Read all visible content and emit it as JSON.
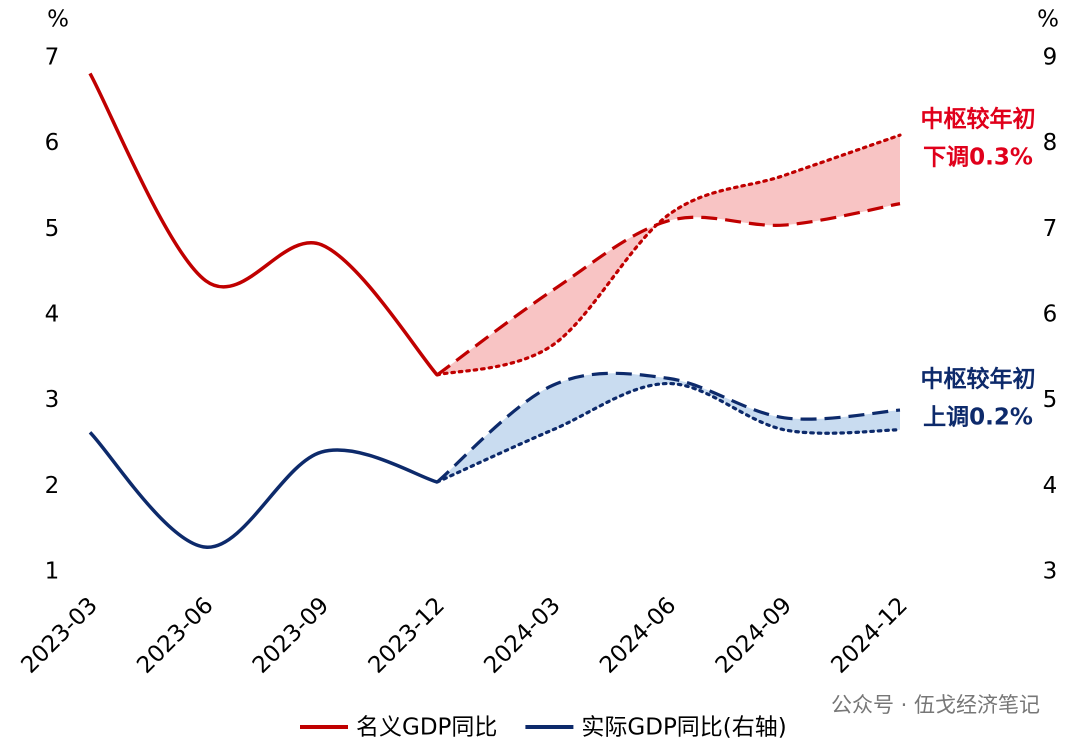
{
  "chart_data": {
    "type": "line",
    "categories": [
      "2023-03",
      "2023-06",
      "2023-09",
      "2023-12",
      "2024-03",
      "2024-06",
      "2024-09",
      "2024-12"
    ],
    "ylabel": "%",
    "y2label": "%",
    "ylim": [
      1,
      7
    ],
    "yticks": [
      1,
      2,
      3,
      4,
      5,
      6,
      7
    ],
    "y2lim": [
      3,
      9
    ],
    "y2ticks": [
      3,
      4,
      5,
      6,
      7,
      8,
      9
    ],
    "series": [
      {
        "name": "名义GDP同比",
        "color": "#c00000",
        "style": "solid",
        "values": [
          6.82,
          4.4,
          4.82,
          3.3,
          null,
          null,
          null,
          null
        ]
      },
      {
        "name": "实际GDP同比(右轴)",
        "color": "#0d2a6b",
        "style": "solid",
        "axis": "y2",
        "values": [
          4.63,
          3.29,
          4.4,
          4.05,
          null,
          null,
          null,
          null
        ]
      },
      {
        "color": "#c00000",
        "style": "dashed",
        "values": [
          null,
          null,
          null,
          3.3,
          4.29,
          5.1,
          5.05,
          5.3
        ]
      },
      {
        "color": "#c00000",
        "style": "dotted",
        "values": [
          null,
          null,
          null,
          3.3,
          3.65,
          5.17,
          5.63,
          6.1
        ]
      },
      {
        "color": "#0d2a6b",
        "style": "dashed",
        "axis": "y2",
        "values": [
          null,
          null,
          null,
          4.05,
          5.18,
          5.26,
          4.8,
          4.89
        ]
      },
      {
        "color": "#0d2a6b",
        "style": "dotted",
        "axis": "y2",
        "values": [
          null,
          null,
          null,
          4.05,
          4.66,
          5.2,
          4.66,
          4.66
        ]
      }
    ],
    "bands": [
      {
        "series": [
          2,
          3
        ],
        "color": "#f8c4c4"
      },
      {
        "series": [
          4,
          5
        ],
        "color": "#c9dcf0"
      }
    ],
    "annotations": [
      {
        "lines": [
          "中枢较年初",
          "下调0.3%"
        ],
        "color": "#e0001b"
      },
      {
        "lines": [
          "中枢较年初",
          "上调0.2%"
        ],
        "color": "#0d2a6b"
      }
    ],
    "source": "公众号 · 伍戈经济笔记"
  }
}
